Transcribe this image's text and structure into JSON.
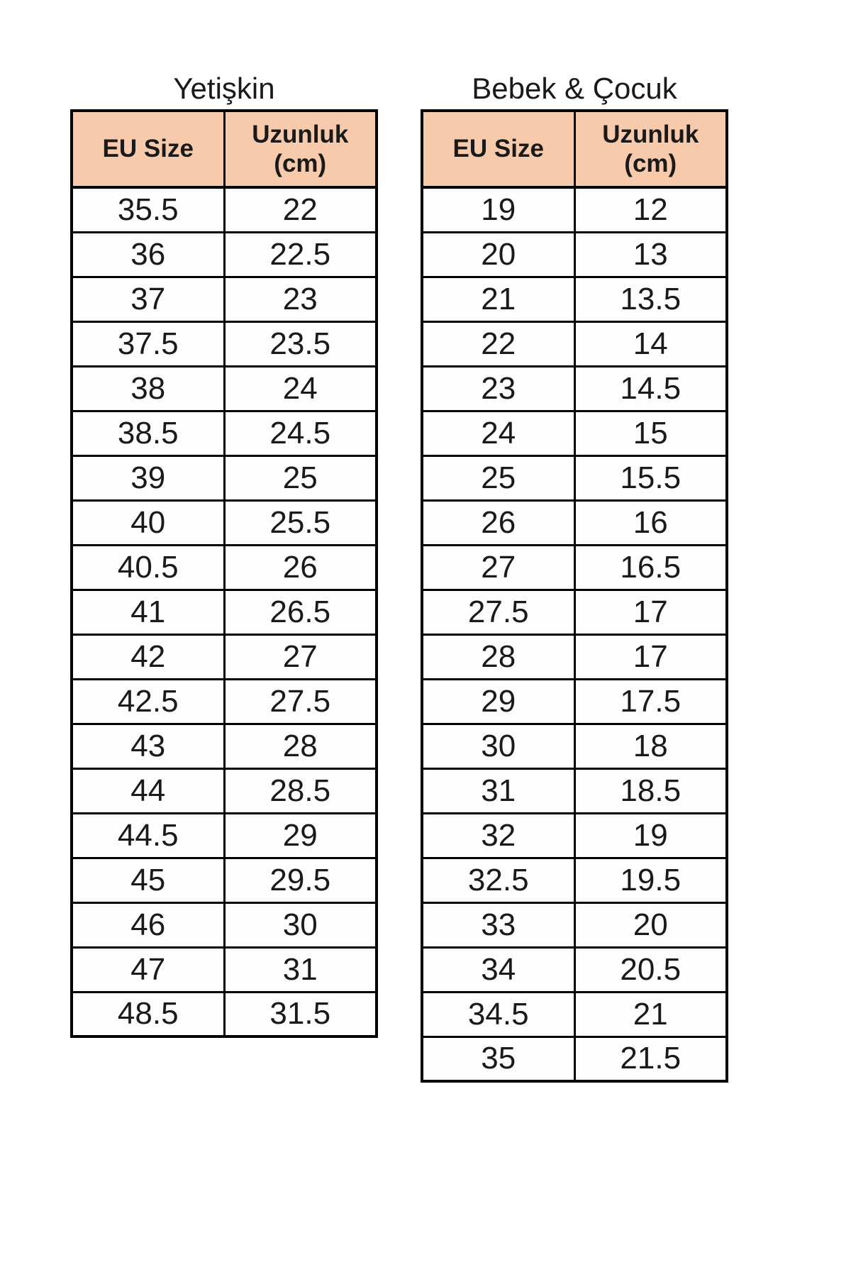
{
  "colors": {
    "page-bg": "#FFFFFF",
    "header-bg": "#F7CAAC",
    "border": "#000000",
    "text": "#1A1A1A",
    "cell-bg": "#FDFDFD"
  },
  "chart_data": [
    {
      "type": "table",
      "title": "Yetişkin",
      "columns": [
        "EU Size",
        "Uzunluk\n(cm)"
      ],
      "rows": [
        [
          "35.5",
          "22"
        ],
        [
          "36",
          "22.5"
        ],
        [
          "37",
          "23"
        ],
        [
          "37.5",
          "23.5"
        ],
        [
          "38",
          "24"
        ],
        [
          "38.5",
          "24.5"
        ],
        [
          "39",
          "25"
        ],
        [
          "40",
          "25.5"
        ],
        [
          "40.5",
          "26"
        ],
        [
          "41",
          "26.5"
        ],
        [
          "42",
          "27"
        ],
        [
          "42.5",
          "27.5"
        ],
        [
          "43",
          "28"
        ],
        [
          "44",
          "28.5"
        ],
        [
          "44.5",
          "29"
        ],
        [
          "45",
          "29.5"
        ],
        [
          "46",
          "30"
        ],
        [
          "47",
          "31"
        ],
        [
          "48.5",
          "31.5"
        ]
      ]
    },
    {
      "type": "table",
      "title": "Bebek & Çocuk",
      "columns": [
        "EU Size",
        "Uzunluk\n(cm)"
      ],
      "rows": [
        [
          "19",
          "12"
        ],
        [
          "20",
          "13"
        ],
        [
          "21",
          "13.5"
        ],
        [
          "22",
          "14"
        ],
        [
          "23",
          "14.5"
        ],
        [
          "24",
          "15"
        ],
        [
          "25",
          "15.5"
        ],
        [
          "26",
          "16"
        ],
        [
          "27",
          "16.5"
        ],
        [
          "27.5",
          "17"
        ],
        [
          "28",
          "17"
        ],
        [
          "29",
          "17.5"
        ],
        [
          "30",
          "18"
        ],
        [
          "31",
          "18.5"
        ],
        [
          "32",
          "19"
        ],
        [
          "32.5",
          "19.5"
        ],
        [
          "33",
          "20"
        ],
        [
          "34",
          "20.5"
        ],
        [
          "34.5",
          "21"
        ],
        [
          "35",
          "21.5"
        ]
      ]
    }
  ]
}
